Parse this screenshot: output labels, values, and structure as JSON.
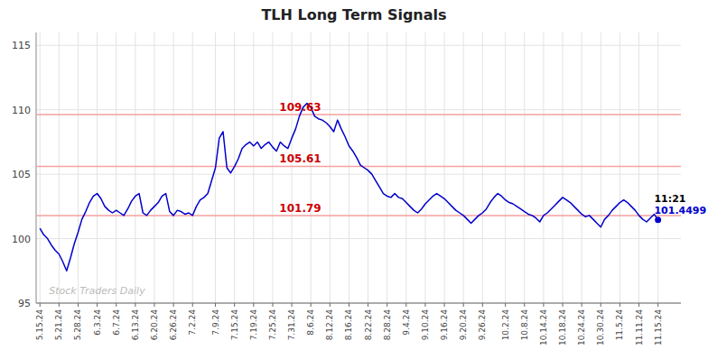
{
  "chart_data": {
    "type": "line",
    "title": "TLH Long Term Signals",
    "categories": [
      "5.15.24",
      null,
      null,
      null,
      null,
      "5.21.24",
      null,
      null,
      null,
      null,
      "5.28.24",
      null,
      null,
      null,
      null,
      "6.3.24",
      null,
      null,
      null,
      null,
      "6.7.24",
      null,
      null,
      null,
      null,
      "6.13.24",
      null,
      null,
      null,
      null,
      "6.20.24",
      null,
      null,
      null,
      null,
      "6.26.24",
      null,
      null,
      null,
      null,
      "7.2.24",
      null,
      null,
      null,
      null,
      null,
      "7.9.24",
      null,
      null,
      null,
      null,
      "7.15.24",
      null,
      null,
      null,
      null,
      "7.19.24",
      null,
      null,
      null,
      null,
      "7.25.24",
      null,
      null,
      null,
      null,
      "7.31.24",
      null,
      null,
      null,
      null,
      "8.6.24",
      null,
      null,
      null,
      null,
      "8.12.24",
      null,
      null,
      null,
      null,
      "8.16.24",
      null,
      null,
      null,
      null,
      "8.22.24",
      null,
      null,
      null,
      null,
      "8.28.24",
      null,
      null,
      null,
      null,
      "9.4.24",
      null,
      null,
      null,
      null,
      "9.10.24",
      null,
      null,
      null,
      null,
      "9.16.24",
      null,
      null,
      null,
      null,
      "9.20.24",
      null,
      null,
      null,
      null,
      "9.26.24",
      null,
      null,
      null,
      null,
      null,
      "10.2.24",
      null,
      null,
      null,
      null,
      "10.8.24",
      null,
      null,
      null,
      null,
      "10.14.24",
      null,
      null,
      null,
      null,
      "10.18.24",
      null,
      null,
      null,
      null,
      "10.24.24",
      null,
      null,
      null,
      null,
      "10.30.24",
      null,
      null,
      null,
      null,
      "11.5.24",
      null,
      null,
      null,
      null,
      "11.11.24",
      null,
      null,
      null,
      null,
      "11.15.24"
    ],
    "values": [
      100.8,
      100.3,
      100.0,
      99.5,
      99.1,
      98.8,
      98.2,
      97.5,
      98.5,
      99.6,
      100.5,
      101.5,
      102.1,
      102.8,
      103.3,
      103.5,
      103.1,
      102.5,
      102.2,
      102.0,
      102.2,
      102.0,
      101.8,
      102.3,
      102.9,
      103.3,
      103.5,
      102.0,
      101.8,
      102.2,
      102.5,
      102.8,
      103.3,
      103.5,
      102.1,
      101.8,
      102.2,
      102.1,
      101.9,
      102.0,
      101.8,
      102.5,
      103.0,
      103.2,
      103.5,
      104.5,
      105.5,
      107.8,
      108.3,
      105.5,
      105.1,
      105.6,
      106.2,
      107.0,
      107.3,
      107.5,
      107.2,
      107.5,
      107.0,
      107.3,
      107.5,
      107.1,
      106.8,
      107.5,
      107.2,
      107.0,
      107.8,
      108.5,
      109.5,
      110.2,
      110.5,
      110.2,
      109.5,
      109.3,
      109.2,
      109.0,
      108.7,
      108.3,
      109.2,
      108.5,
      107.9,
      107.2,
      106.8,
      106.3,
      105.7,
      105.5,
      105.3,
      105.0,
      104.5,
      104.0,
      103.5,
      103.3,
      103.2,
      103.5,
      103.2,
      103.1,
      102.8,
      102.5,
      102.2,
      102.0,
      102.3,
      102.7,
      103.0,
      103.3,
      103.5,
      103.3,
      103.1,
      102.8,
      102.5,
      102.2,
      102.0,
      101.8,
      101.5,
      101.2,
      101.5,
      101.8,
      102.0,
      102.3,
      102.8,
      103.2,
      103.5,
      103.3,
      103.0,
      102.8,
      102.7,
      102.5,
      102.3,
      102.1,
      101.9,
      101.8,
      101.6,
      101.3,
      101.8,
      102.0,
      102.3,
      102.6,
      102.9,
      103.2,
      103.0,
      102.8,
      102.5,
      102.2,
      101.9,
      101.7,
      101.8,
      101.5,
      101.2,
      100.9,
      101.5,
      101.8,
      102.2,
      102.5,
      102.8,
      103.0,
      102.8,
      102.5,
      102.2,
      101.8,
      101.5,
      101.3,
      101.6,
      101.9,
      101.4499
    ],
    "color": "#0000cc",
    "reference_lines": [
      {
        "value": 109.63,
        "color": "#f5a0a0"
      },
      {
        "value": 105.61,
        "color": "#f5a0a0"
      },
      {
        "value": 101.79,
        "color": "#f5a0a0"
      }
    ],
    "annotations": [
      {
        "text": "11:21"
      },
      {
        "text": "Stock Traders Daily"
      }
    ],
    "ylim": [
      95,
      116
    ],
    "yticks": [
      95,
      100,
      105,
      110,
      115
    ],
    "grid": true
  }
}
